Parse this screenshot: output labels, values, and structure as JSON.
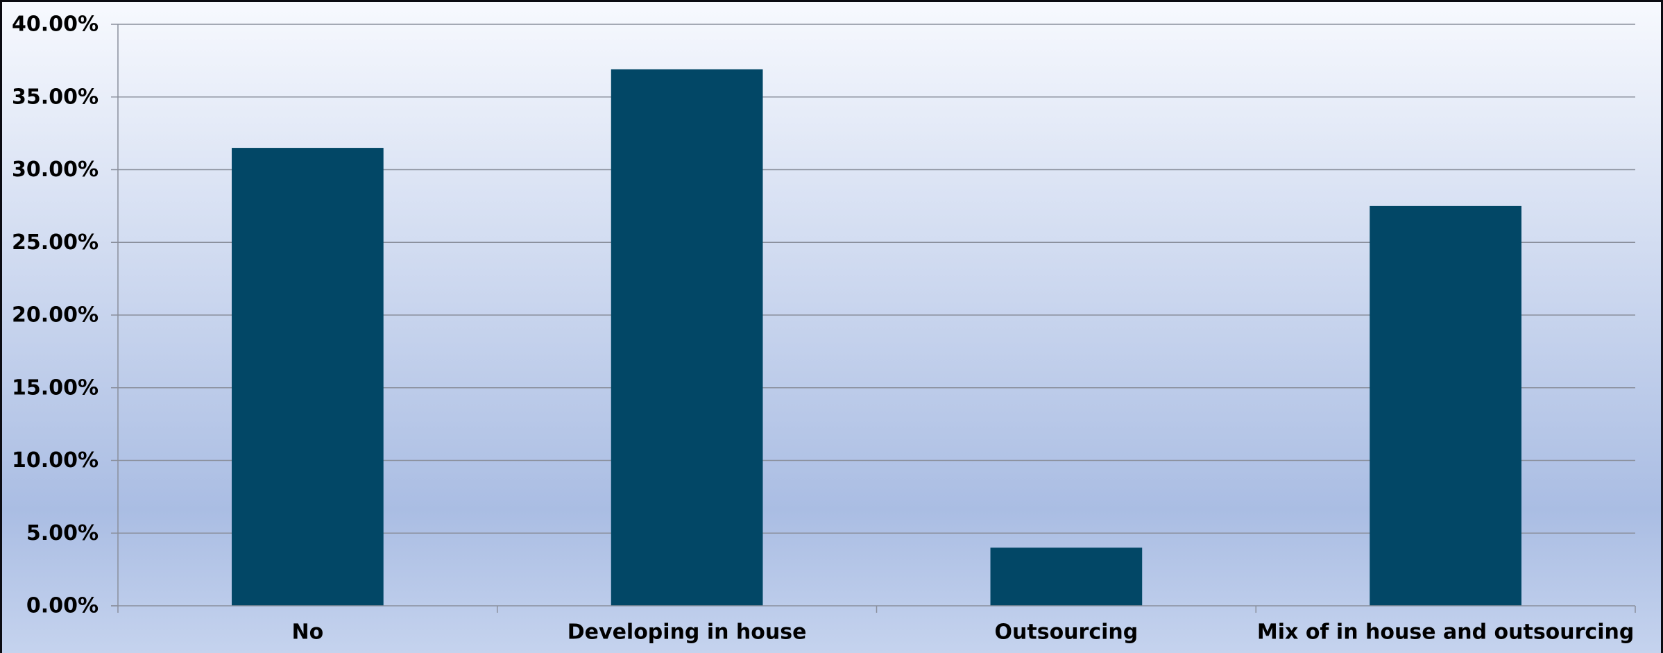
{
  "chart_data": {
    "type": "bar",
    "categories": [
      "No",
      "Developing in house",
      "Outsourcing",
      "Mix of in house and outsourcing"
    ],
    "values": [
      31.5,
      36.9,
      4.0,
      27.5
    ],
    "ylim": [
      0,
      40
    ],
    "ytick_values": [
      0,
      5,
      10,
      15,
      20,
      25,
      30,
      35,
      40
    ],
    "ytick_labels": [
      "0.00%",
      "5.00%",
      "10.00%",
      "15.00%",
      "20.00%",
      "25.00%",
      "30.00%",
      "35.00%",
      "40.00%"
    ],
    "grid": true,
    "colors": {
      "bar": "#024766",
      "grid": "#8a8f9c",
      "axis": "#8a8f9c",
      "bg_top": "#f7f9fe",
      "bg_mid": "#aabde3",
      "bg_bottom": "#c5d3ee",
      "frame": "#0b0b12",
      "text": "#000000"
    }
  }
}
